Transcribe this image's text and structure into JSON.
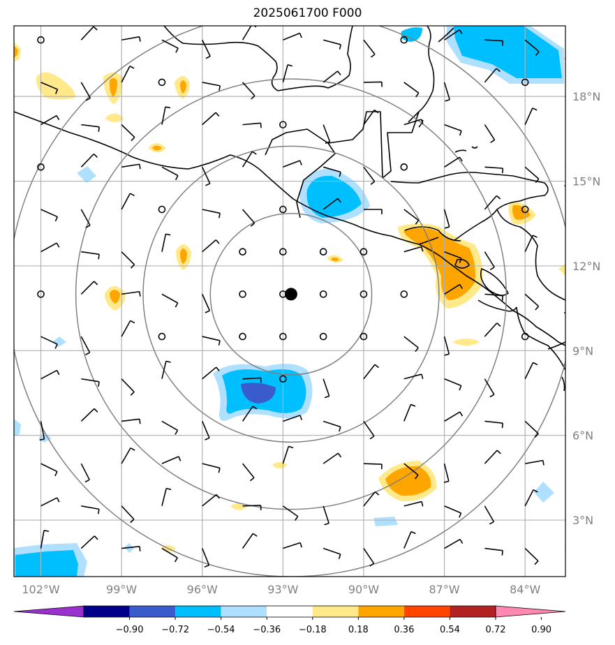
{
  "title": "2025061700 F000",
  "map": {
    "lon_range": [
      -103,
      -82.5
    ],
    "lat_range": [
      1,
      20.5
    ],
    "lat_ticks": [
      {
        "value": 3,
        "label": "3°N"
      },
      {
        "value": 6,
        "label": "6°N"
      },
      {
        "value": 9,
        "label": "9°N"
      },
      {
        "value": 12,
        "label": "12°N"
      },
      {
        "value": 15,
        "label": "15°N"
      },
      {
        "value": 18,
        "label": "18°N"
      }
    ],
    "lon_ticks": [
      {
        "value": -102,
        "label": "102°W"
      },
      {
        "value": -99,
        "label": "99°W"
      },
      {
        "value": -96,
        "label": "96°W"
      },
      {
        "value": -93,
        "label": "93°W"
      },
      {
        "value": -90,
        "label": "90°W"
      },
      {
        "value": -87,
        "label": "87°W"
      },
      {
        "value": -84,
        "label": "84°W"
      }
    ],
    "center": {
      "lon": -92.7,
      "lat": 11.0
    },
    "range_rings_deg": [
      3,
      5.5,
      8,
      10.5
    ],
    "barb_grid": {
      "lon_start": -102,
      "lon_step": 1.5,
      "lat_start": 2,
      "lat_step": 1.5,
      "cols": 14,
      "rows": 13
    }
  },
  "colorbar": {
    "levels": [
      "−0.90",
      "−0.72",
      "−0.54",
      "−0.36",
      "−0.18",
      "0.18",
      "0.36",
      "0.54",
      "0.72",
      "0.90"
    ],
    "colors": [
      "#9b30d0",
      "#00008b",
      "#3a5bcc",
      "#00bfff",
      "#b0e0ff",
      "#ffffff",
      "#ffe98a",
      "#ffa500",
      "#ff4500",
      "#b22222",
      "#ff88b0"
    ]
  },
  "colors": {
    "positive_light": "#ffe98a",
    "positive": "#ffa500",
    "negative_light": "#b0e0ff",
    "negative": "#00bfff",
    "negative_strong": "#3a5bcc"
  }
}
